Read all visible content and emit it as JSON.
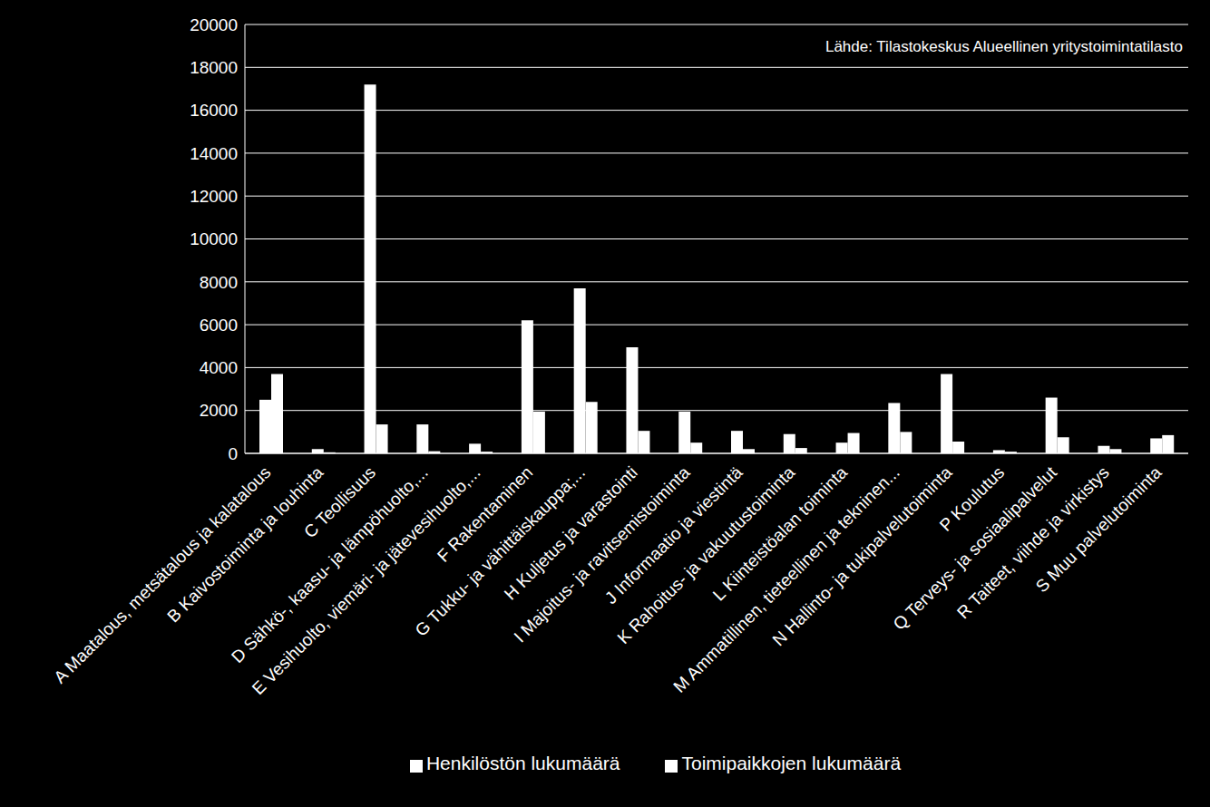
{
  "chart_data": {
    "type": "bar",
    "annotations": [
      "Lähde: Tilastokeskus Alueellinen yritystoimintatilasto"
    ],
    "categories": [
      "A Maatalous, metsätalous ja kalatalous",
      "B Kaivostoiminta ja louhinta",
      "C Teollisuus",
      "D Sähkö-, kaasu- ja lämpöhuolto,...",
      "E Vesihuolto, viemäri- ja jätevesihuolto,...",
      "F Rakentaminen",
      "G Tukku- ja vähittäiskauppa;...",
      "H Kuljetus ja varastointi",
      "I Majoitus- ja ravitsemistoiminta",
      "J Informaatio ja viestintä",
      "K Rahoitus- ja vakuutustoiminta",
      "L Kiinteistöalan toiminta",
      "M Ammatillinen, tieteellinen ja tekninen...",
      "N Hallinto- ja tukipalvelutoiminta",
      "P Koulutus",
      "Q Terveys- ja sosiaalipalvelut",
      "R Taiteet, viihde ja virkistys",
      "S Muu palvelutoiminta"
    ],
    "series": [
      {
        "name": "Henkilöstön lukumäärä",
        "color": "#ffffff",
        "values": [
          2500,
          200,
          17200,
          1350,
          450,
          6200,
          7700,
          4950,
          1950,
          1050,
          900,
          500,
          2350,
          3700,
          150,
          2600,
          350,
          700
        ]
      },
      {
        "name": "Toimipaikkojen lukumäärä",
        "color": "#ffffff",
        "values": [
          3700,
          50,
          1350,
          100,
          80,
          1950,
          2400,
          1050,
          500,
          200,
          250,
          950,
          1000,
          550,
          80,
          750,
          200,
          850
        ]
      }
    ],
    "ylim": [
      0,
      20000
    ],
    "yticks": [
      0,
      2000,
      4000,
      6000,
      8000,
      10000,
      12000,
      14000,
      16000,
      18000,
      20000
    ],
    "grid": true,
    "legend": "bottom"
  }
}
